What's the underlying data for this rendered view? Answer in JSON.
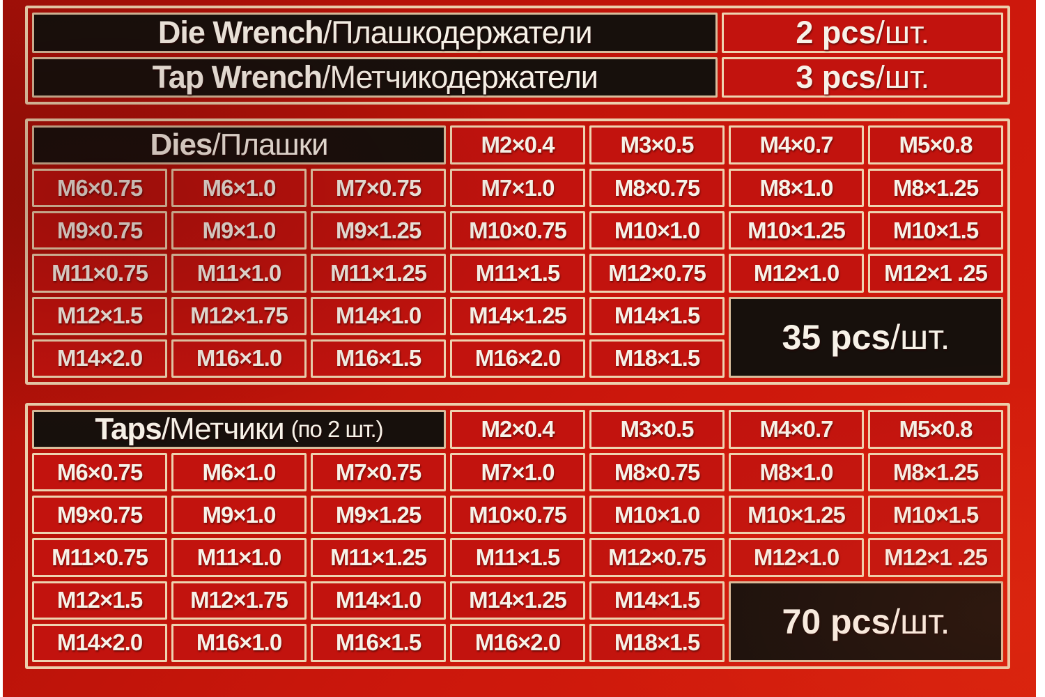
{
  "colors": {
    "background_red": "#c8150c",
    "cell_red": "#c2130e",
    "border_cream": "#eed3b0",
    "panel_black": "#17100c",
    "text": "#f7f2e8"
  },
  "wrench_table": {
    "rows": [
      {
        "name_en": "Die Wrench",
        "sep": " / ",
        "name_ru": "Плашкодержатели",
        "qty": "2 pcs",
        "qty_unit": "/шт."
      },
      {
        "name_en": "Tap Wrench",
        "sep": " / ",
        "name_ru": "Метчикодержатели",
        "qty": "3 pcs",
        "qty_unit": "/шт."
      }
    ]
  },
  "dies_table": {
    "title_en": "Dies",
    "title_sep": " / ",
    "title_ru": "Плашки",
    "title_note": "",
    "header_sizes": [
      "M2×0.4",
      "M3×0.5",
      "M4×0.7",
      "M5×0.8"
    ],
    "rows": [
      [
        "M6×0.75",
        "M6×1.0",
        "M7×0.75",
        "M7×1.0",
        "M8×0.75",
        "M8×1.0",
        "M8×1.25"
      ],
      [
        "M9×0.75",
        "M9×1.0",
        "M9×1.25",
        "M10×0.75",
        "M10×1.0",
        "M10×1.25",
        "M10×1.5"
      ],
      [
        "M11×0.75",
        "M11×1.0",
        "M11×1.25",
        "M11×1.5",
        "M12×0.75",
        "M12×1.0",
        "M12×1 .25"
      ],
      [
        "M12×1.5",
        "M12×1.75",
        "M14×1.0",
        "M14×1.25",
        "M14×1.5"
      ],
      [
        "M14×2.0",
        "M16×1.0",
        "M16×1.5",
        "M16×2.0",
        "M18×1.5"
      ]
    ],
    "total_qty": "35 pcs",
    "total_unit": "/шт."
  },
  "taps_table": {
    "title_en": "Taps",
    "title_sep": "/",
    "title_ru": "Метчики",
    "title_note": "(по 2 шт.)",
    "header_sizes": [
      "M2×0.4",
      "M3×0.5",
      "M4×0.7",
      "M5×0.8"
    ],
    "rows": [
      [
        "M6×0.75",
        "M6×1.0",
        "M7×0.75",
        "M7×1.0",
        "M8×0.75",
        "M8×1.0",
        "M8×1.25"
      ],
      [
        "M9×0.75",
        "M9×1.0",
        "M9×1.25",
        "M10×0.75",
        "M10×1.0",
        "M10×1.25",
        "M10×1.5"
      ],
      [
        "M11×0.75",
        "M11×1.0",
        "M11×1.25",
        "M11×1.5",
        "M12×0.75",
        "M12×1.0",
        "M12×1 .25"
      ],
      [
        "M12×1.5",
        "M12×1.75",
        "M14×1.0",
        "M14×1.25",
        "M14×1.5"
      ],
      [
        "M14×2.0",
        "M16×1.0",
        "M16×1.5",
        "M16×2.0",
        "M18×1.5"
      ]
    ],
    "total_qty": "70 pcs",
    "total_unit": "/шт."
  }
}
